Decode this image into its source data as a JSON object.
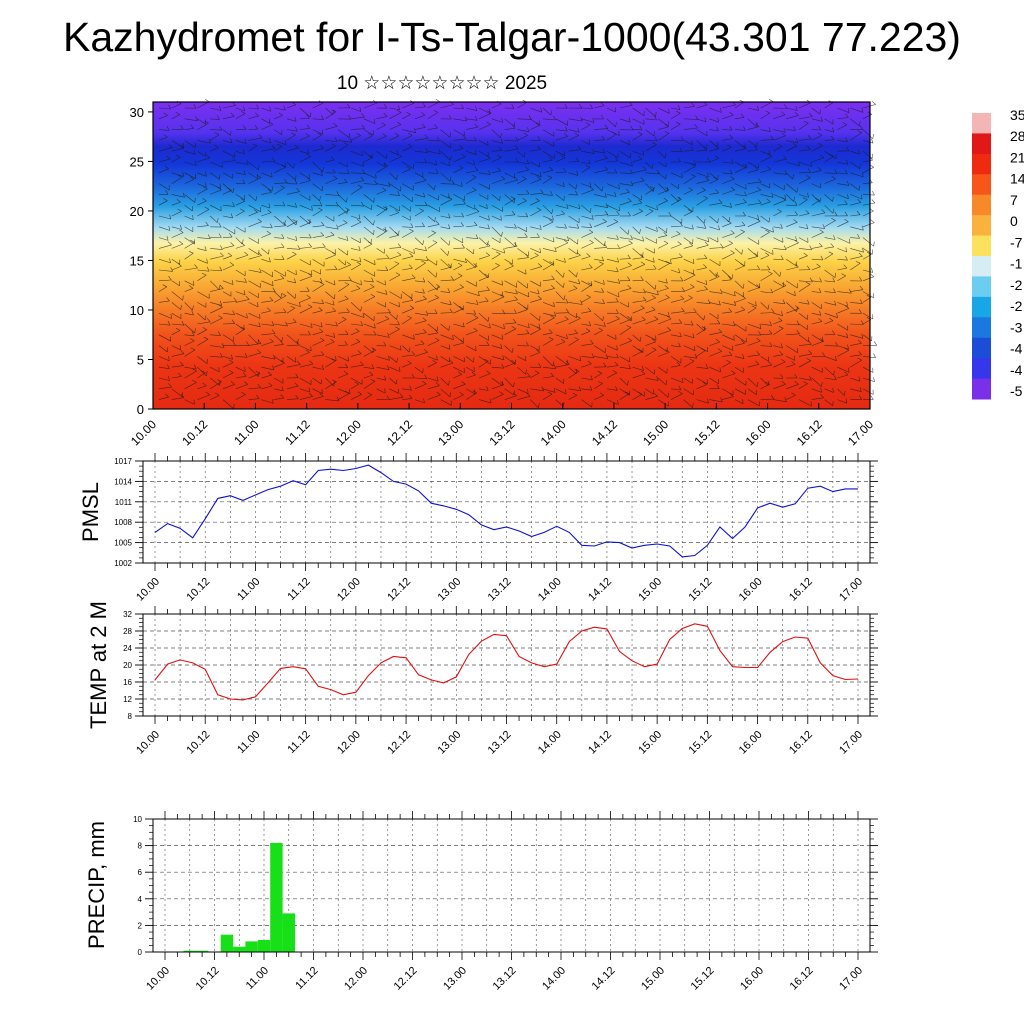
{
  "title": "Kazhydromet for I-Ts-Talgar-1000(43.301 77.223)",
  "subtitle": "10 ☆☆☆☆☆☆☆☆ 2025",
  "chart_data": [
    {
      "type": "heatmap",
      "name": "vertical profile",
      "x_ticks": [
        "10.00",
        "10.12",
        "11.00",
        "11.12",
        "12.00",
        "12.12",
        "13.00",
        "13.12",
        "14.00",
        "14.12",
        "15.00",
        "15.12",
        "16.00",
        "16.12",
        "17.00"
      ],
      "y_ticks": [
        0,
        5,
        10,
        15,
        20,
        25,
        30
      ],
      "ylim": [
        0,
        31
      ],
      "colorbar_labels": [
        "35",
        "28",
        "21",
        "14",
        "7",
        "0",
        "-7",
        "-1",
        "-2",
        "-2",
        "-3",
        "-4",
        "-4",
        "-5"
      ],
      "colorbar_colors": [
        "#f4b5b5",
        "#e01818",
        "#ee2a10",
        "#f6561a",
        "#f7892a",
        "#f9b23e",
        "#fce15e",
        "#d6edf3",
        "#6bcdf0",
        "#18a6e6",
        "#1a78df",
        "#1c4dd6",
        "#3636ec",
        "#7a2fe8"
      ],
      "description_of_field": "temperature decreasing with height from about 28 near ground to about -50 at top; thin blue band near 25"
    },
    {
      "type": "line",
      "ylabel": "PMSL",
      "color": "#1010d0",
      "x_ticks": [
        "10.00",
        "10.12",
        "11.00",
        "11.12",
        "12.00",
        "12.12",
        "13.00",
        "13.12",
        "14.00",
        "14.12",
        "15.00",
        "15.12",
        "16.00",
        "16.12",
        "17.00"
      ],
      "y_ticks": [
        1002,
        1005,
        1008,
        1011,
        1014,
        1017
      ],
      "ylim": [
        1002,
        1017
      ],
      "x": [
        0,
        3,
        6,
        9,
        12,
        15,
        18,
        21,
        24,
        27,
        30,
        33,
        36,
        39,
        42,
        45,
        48,
        51,
        54,
        57,
        60,
        63,
        66,
        69,
        72,
        75,
        78,
        81,
        84,
        87,
        90,
        93,
        96,
        99,
        102,
        105,
        108,
        111,
        114,
        117,
        120,
        123,
        126,
        129,
        132,
        135,
        138,
        141,
        144,
        147,
        150,
        153,
        156,
        159,
        162,
        165,
        168
      ],
      "values": [
        1006.5,
        1007.8,
        1007.1,
        1005.7,
        1008.5,
        1011.5,
        1011.9,
        1011.2,
        1012.0,
        1012.8,
        1013.3,
        1014.1,
        1013.5,
        1015.6,
        1015.8,
        1015.6,
        1015.9,
        1016.4,
        1015.3,
        1014.0,
        1013.6,
        1012.6,
        1010.8,
        1010.4,
        1009.9,
        1009.1,
        1007.6,
        1006.9,
        1007.3,
        1006.7,
        1005.9,
        1006.5,
        1007.4,
        1006.5,
        1004.6,
        1004.5,
        1005.1,
        1005.0,
        1004.2,
        1004.6,
        1004.8,
        1004.5,
        1002.9,
        1003.1,
        1004.6,
        1007.3,
        1005.6,
        1007.3,
        1010.1,
        1010.8,
        1010.2,
        1010.7,
        1013.0,
        1013.3,
        1012.5,
        1012.9,
        1012.9
      ]
    },
    {
      "type": "line",
      "ylabel": "TEMP at 2 M",
      "color": "#e01010",
      "x_ticks": [
        "10.00",
        "10.12",
        "11.00",
        "11.12",
        "12.00",
        "12.12",
        "13.00",
        "13.12",
        "14.00",
        "14.12",
        "15.00",
        "15.12",
        "16.00",
        "16.12",
        "17.00"
      ],
      "y_ticks": [
        8,
        12,
        16,
        20,
        24,
        28,
        32
      ],
      "ylim": [
        8,
        32
      ],
      "x": [
        0,
        3,
        6,
        9,
        12,
        15,
        18,
        21,
        24,
        27,
        30,
        33,
        36,
        39,
        42,
        45,
        48,
        51,
        54,
        57,
        60,
        63,
        66,
        69,
        72,
        75,
        78,
        81,
        84,
        87,
        90,
        93,
        96,
        99,
        102,
        105,
        108,
        111,
        114,
        117,
        120,
        123,
        126,
        129,
        132,
        135,
        138,
        141,
        144,
        147,
        150,
        153,
        156,
        159,
        162,
        165,
        168
      ],
      "values": [
        16.5,
        20.2,
        21.2,
        20.5,
        19.0,
        13.0,
        12.0,
        11.8,
        12.5,
        15.8,
        19.2,
        19.6,
        19.1,
        15.0,
        14.2,
        13.0,
        13.6,
        17.5,
        20.5,
        22.0,
        21.7,
        17.7,
        16.5,
        15.8,
        17.2,
        22.5,
        25.6,
        27.2,
        26.9,
        22.0,
        20.5,
        19.6,
        20.2,
        25.5,
        28.0,
        28.9,
        28.5,
        23.2,
        21.0,
        19.6,
        20.2,
        26.0,
        28.6,
        29.7,
        29.1,
        23.4,
        19.6,
        19.4,
        19.4,
        23.0,
        25.5,
        26.6,
        26.3,
        20.5,
        17.5,
        16.6,
        16.7
      ]
    },
    {
      "type": "bar",
      "ylabel": "PRECIP, mm",
      "color": "#18e018",
      "x_ticks": [
        "10.00",
        "10.12",
        "11.00",
        "11.12",
        "12.00",
        "12.12",
        "13.00",
        "13.12",
        "14.00",
        "14.12",
        "15.00",
        "15.12",
        "16.00",
        "16.12",
        "17.00"
      ],
      "y_ticks": [
        0,
        2,
        4,
        6,
        8,
        10
      ],
      "ylim": [
        0,
        10
      ],
      "x": [
        0,
        3,
        6,
        9,
        12,
        15,
        18,
        21,
        24,
        27,
        30,
        33,
        36,
        39,
        42,
        45,
        48,
        51,
        54,
        57,
        60,
        63,
        66,
        69,
        72,
        75,
        78,
        81,
        84,
        87,
        90,
        93,
        96,
        99,
        102,
        105,
        108,
        111,
        114,
        117,
        120,
        123,
        126,
        129,
        132,
        135,
        138,
        141,
        144,
        147,
        150,
        153,
        156,
        159,
        162,
        165,
        168
      ],
      "values": [
        0,
        0,
        0.1,
        0.1,
        0,
        1.3,
        0.4,
        0.8,
        0.9,
        8.2,
        2.9,
        0,
        0,
        0,
        0,
        0,
        0,
        0.03,
        0,
        0,
        0,
        0,
        0,
        0,
        0,
        0,
        0,
        0,
        0,
        0,
        0,
        0,
        0,
        0,
        0,
        0,
        0,
        0,
        0,
        0,
        0,
        0,
        0,
        0,
        0,
        0,
        0,
        0,
        0,
        0,
        0,
        0,
        0,
        0,
        0,
        0,
        0
      ]
    }
  ]
}
